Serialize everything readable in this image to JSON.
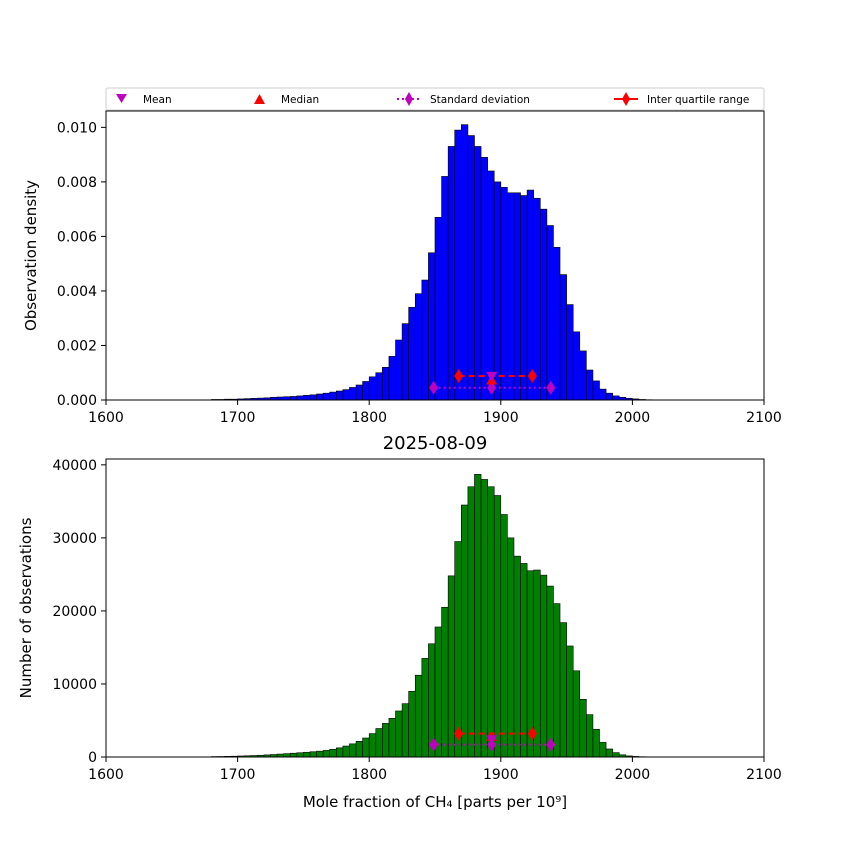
{
  "legend": {
    "items": [
      {
        "label": "Mean",
        "marker": "triangle-down",
        "color": "#bf00bf"
      },
      {
        "label": "Median",
        "marker": "triangle-up",
        "color": "#ff0000"
      },
      {
        "label": "Standard deviation",
        "marker": "diamond-dotted-line",
        "color": "#bf00bf"
      },
      {
        "label": "Inter quartile range",
        "marker": "diamond-solid-line",
        "color": "#ff0000"
      }
    ]
  },
  "chart_data": [
    {
      "type": "bar",
      "title": "",
      "xlabel": "",
      "ylabel": "Observation density",
      "xlim": [
        1600,
        2100
      ],
      "ylim": [
        0,
        0.0106
      ],
      "xticks": [
        1600,
        1700,
        1800,
        1900,
        2000,
        2100
      ],
      "xtick_labels": [
        "1600",
        "1700",
        "1800",
        "1900",
        "2000",
        "2100"
      ],
      "yticks": [
        0,
        0.002,
        0.004,
        0.006,
        0.008,
        0.01
      ],
      "ytick_labels": [
        "0.000",
        "0.002",
        "0.004",
        "0.006",
        "0.008",
        "0.010"
      ],
      "bar_color": "#0000ff",
      "bin_start": 1680,
      "bin_width": 5,
      "values": [
        2e-05,
        2e-05,
        3e-05,
        3e-05,
        4e-05,
        5e-05,
        6e-05,
        7e-05,
        8e-05,
        0.0001,
        0.00011,
        0.00012,
        0.00013,
        0.00015,
        0.00017,
        0.00019,
        0.00022,
        0.00025,
        0.00029,
        0.00033,
        0.00038,
        0.00046,
        0.00055,
        0.00068,
        0.00085,
        0.001,
        0.0012,
        0.0016,
        0.0022,
        0.0028,
        0.0034,
        0.0039,
        0.0044,
        0.0054,
        0.0067,
        0.0082,
        0.0093,
        0.0099,
        0.0101,
        0.0097,
        0.0093,
        0.0089,
        0.0084,
        0.008,
        0.0078,
        0.0076,
        0.0076,
        0.0075,
        0.0077,
        0.0074,
        0.007,
        0.0064,
        0.0056,
        0.0046,
        0.0035,
        0.0025,
        0.0018,
        0.0011,
        0.0007,
        0.0004,
        0.00025,
        0.00015,
        0.0001,
        6e-05,
        4e-05,
        2e-05,
        1e-05
      ],
      "stats": {
        "mean": 1893,
        "median": 1893,
        "std_range": [
          1849,
          1938
        ],
        "iqr_range": [
          1868,
          1924
        ],
        "mean_y": 0.00085,
        "median_y": 0.00075,
        "std_y": 0.00045,
        "iqr_y": 0.00088
      }
    },
    {
      "type": "bar",
      "title": "2025-08-09",
      "xlabel": "Mole fraction of CH₄ [parts per 10⁹]",
      "ylabel": "Number of observations",
      "xlim": [
        1600,
        2100
      ],
      "ylim": [
        0,
        40800
      ],
      "xticks": [
        1600,
        1700,
        1800,
        1900,
        2000,
        2100
      ],
      "xtick_labels": [
        "1600",
        "1700",
        "1800",
        "1900",
        "2000",
        "2100"
      ],
      "yticks": [
        0,
        10000,
        20000,
        30000,
        40000
      ],
      "ytick_labels": [
        "0",
        "10000",
        "20000",
        "30000",
        "40000"
      ],
      "bar_color": "#008000",
      "bin_start": 1680,
      "bin_width": 5,
      "values": [
        60,
        70,
        90,
        110,
        140,
        170,
        200,
        240,
        290,
        340,
        400,
        460,
        520,
        580,
        650,
        720,
        800,
        900,
        1050,
        1250,
        1500,
        1800,
        2150,
        2600,
        3200,
        3900,
        4600,
        5300,
        6300,
        7300,
        9000,
        11200,
        13500,
        15500,
        17800,
        20500,
        24800,
        29500,
        34500,
        37000,
        38700,
        38000,
        37000,
        35800,
        33200,
        30000,
        27500,
        26500,
        25500,
        25600,
        24900,
        23400,
        21000,
        18400,
        15200,
        11800,
        7900,
        5800,
        3800,
        2000,
        1100,
        600,
        300,
        150,
        80,
        40,
        20
      ],
      "stats": {
        "mean": 1893,
        "median": 1893,
        "std_range": [
          1849,
          1938
        ],
        "iqr_range": [
          1868,
          1924
        ],
        "mean_y": 2300,
        "median_y": 2900,
        "std_y": 1700,
        "iqr_y": 3200
      }
    }
  ]
}
